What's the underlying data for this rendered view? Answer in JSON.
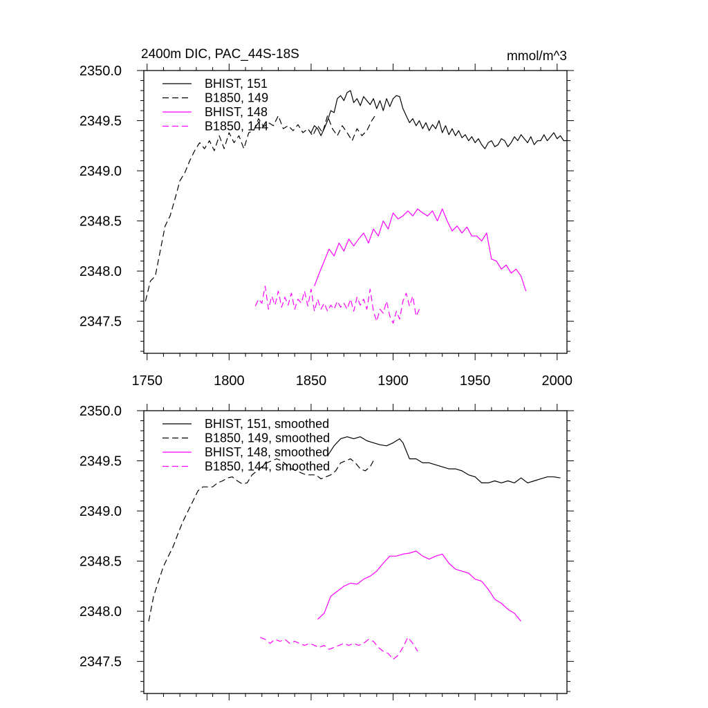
{
  "colors": {
    "black": "#000000",
    "magenta": "#ff00ff"
  },
  "chart_data": [
    {
      "type": "line",
      "title": "2400m DIC, PAC_44S-18S",
      "unit_label": "mmol/m^3",
      "xlim": [
        1748,
        2006
      ],
      "ylim": [
        2347.18,
        2350.0
      ],
      "xticks": [
        1750,
        1800,
        1850,
        1900,
        1950,
        2000
      ],
      "xtick_labels": [
        "1750",
        "1800",
        "1850",
        "1900",
        "1950",
        "2000"
      ],
      "yticks": [
        2350.0,
        2349.5,
        2349.0,
        2348.5,
        2348.0,
        2347.5
      ],
      "ytick_labels": [
        "2350.0",
        "2349.5",
        "2349.0",
        "2348.5",
        "2348.0",
        "2347.5"
      ],
      "legend_position": "top-left",
      "series": [
        {
          "name": "BHIST, 151",
          "color": "#000000",
          "dash": "solid",
          "x": [
            1850,
            1852,
            1854,
            1856,
            1858,
            1860,
            1862,
            1864,
            1866,
            1868,
            1870,
            1872,
            1874,
            1876,
            1878,
            1880,
            1882,
            1884,
            1886,
            1888,
            1890,
            1892,
            1894,
            1896,
            1898,
            1900,
            1902,
            1904,
            1906,
            1908,
            1910,
            1912,
            1914,
            1916,
            1918,
            1920,
            1922,
            1924,
            1926,
            1928,
            1930,
            1932,
            1934,
            1936,
            1938,
            1940,
            1942,
            1944,
            1946,
            1948,
            1950,
            1952,
            1954,
            1956,
            1958,
            1960,
            1962,
            1964,
            1966,
            1968,
            1970,
            1972,
            1974,
            1976,
            1978,
            1980,
            1982,
            1984,
            1986,
            1988,
            1990,
            1992,
            1994,
            1996,
            1998,
            2000,
            2002,
            2004,
            2006
          ],
          "y": [
            2349.38,
            2349.45,
            2349.42,
            2349.35,
            2349.42,
            2349.5,
            2349.6,
            2349.58,
            2349.72,
            2349.75,
            2349.7,
            2349.78,
            2349.8,
            2349.68,
            2349.72,
            2349.65,
            2349.74,
            2349.7,
            2349.66,
            2349.72,
            2349.62,
            2349.7,
            2349.6,
            2349.72,
            2349.64,
            2349.72,
            2349.75,
            2349.74,
            2349.62,
            2349.55,
            2349.48,
            2349.52,
            2349.45,
            2349.5,
            2349.42,
            2349.48,
            2349.4,
            2349.46,
            2349.42,
            2349.5,
            2349.38,
            2349.45,
            2349.36,
            2349.42,
            2349.35,
            2349.4,
            2349.33,
            2349.36,
            2349.3,
            2349.34,
            2349.28,
            2349.32,
            2349.26,
            2349.22,
            2349.28,
            2349.3,
            2349.24,
            2349.26,
            2349.32,
            2349.3,
            2349.24,
            2349.28,
            2349.34,
            2349.3,
            2349.36,
            2349.32,
            2349.28,
            2349.34,
            2349.26,
            2349.3,
            2349.3,
            2349.36,
            2349.3,
            2349.34,
            2349.38,
            2349.32,
            2349.35,
            2349.3,
            2349.3
          ]
        },
        {
          "name": "B1850, 149",
          "color": "#000000",
          "dash": "dashed",
          "x": [
            1749,
            1752,
            1755,
            1758,
            1761,
            1764,
            1767,
            1770,
            1773,
            1776,
            1779,
            1782,
            1785,
            1788,
            1791,
            1794,
            1797,
            1800,
            1803,
            1806,
            1809,
            1812,
            1815,
            1818,
            1821,
            1824,
            1827,
            1830,
            1833,
            1836,
            1839,
            1842,
            1845,
            1848,
            1851,
            1854,
            1857,
            1860,
            1863,
            1866,
            1869,
            1872,
            1875,
            1878,
            1881,
            1884,
            1887,
            1889
          ],
          "y": [
            2347.7,
            2347.9,
            2347.95,
            2348.2,
            2348.45,
            2348.55,
            2348.72,
            2348.9,
            2348.98,
            2349.1,
            2349.2,
            2349.28,
            2349.22,
            2349.3,
            2349.2,
            2349.35,
            2349.22,
            2349.38,
            2349.28,
            2349.35,
            2349.22,
            2349.38,
            2349.4,
            2349.52,
            2349.44,
            2349.48,
            2349.45,
            2349.55,
            2349.42,
            2349.45,
            2349.4,
            2349.46,
            2349.38,
            2349.42,
            2349.35,
            2349.45,
            2349.38,
            2349.55,
            2349.42,
            2349.35,
            2349.45,
            2349.38,
            2349.3,
            2349.42,
            2349.35,
            2349.4,
            2349.5,
            2349.55
          ]
        },
        {
          "name": "BHIST, 148",
          "color": "#ff00ff",
          "dash": "solid",
          "x": [
            1852,
            1855,
            1858,
            1861,
            1864,
            1867,
            1870,
            1873,
            1876,
            1879,
            1882,
            1885,
            1888,
            1891,
            1894,
            1897,
            1900,
            1903,
            1906,
            1909,
            1912,
            1915,
            1918,
            1921,
            1924,
            1927,
            1930,
            1933,
            1936,
            1939,
            1942,
            1945,
            1948,
            1951,
            1954,
            1957,
            1960,
            1963,
            1966,
            1969,
            1972,
            1975,
            1978,
            1981
          ],
          "y": [
            2347.85,
            2347.98,
            2348.1,
            2348.22,
            2348.15,
            2348.28,
            2348.2,
            2348.32,
            2348.25,
            2348.32,
            2348.38,
            2348.28,
            2348.42,
            2348.35,
            2348.5,
            2348.42,
            2348.58,
            2348.52,
            2348.55,
            2348.6,
            2348.55,
            2348.62,
            2348.58,
            2348.55,
            2348.6,
            2348.5,
            2348.62,
            2348.5,
            2348.4,
            2348.45,
            2348.38,
            2348.44,
            2348.35,
            2348.35,
            2348.3,
            2348.38,
            2348.12,
            2348.1,
            2348.02,
            2348.06,
            2347.98,
            2348.02,
            2347.95,
            2347.8
          ],
          "series_role": "data"
        },
        {
          "name": "B1850, 144",
          "color": "#ff00ff",
          "dash": "dashed",
          "x": [
            1816,
            1818,
            1820,
            1822,
            1824,
            1826,
            1828,
            1830,
            1832,
            1834,
            1836,
            1838,
            1840,
            1842,
            1844,
            1846,
            1848,
            1850,
            1852,
            1854,
            1856,
            1858,
            1860,
            1862,
            1864,
            1866,
            1868,
            1870,
            1872,
            1874,
            1876,
            1878,
            1880,
            1882,
            1884,
            1886,
            1888,
            1890,
            1892,
            1894,
            1896,
            1898,
            1900,
            1902,
            1904,
            1906,
            1908,
            1910,
            1912,
            1914,
            1916
          ],
          "y": [
            2347.65,
            2347.72,
            2347.68,
            2347.85,
            2347.62,
            2347.75,
            2347.66,
            2347.8,
            2347.64,
            2347.74,
            2347.66,
            2347.78,
            2347.62,
            2347.72,
            2347.68,
            2347.8,
            2347.65,
            2347.82,
            2347.6,
            2347.72,
            2347.62,
            2347.68,
            2347.6,
            2347.66,
            2347.62,
            2347.7,
            2347.64,
            2347.68,
            2347.62,
            2347.72,
            2347.6,
            2347.74,
            2347.66,
            2347.72,
            2347.62,
            2347.82,
            2347.6,
            2347.5,
            2347.62,
            2347.58,
            2347.7,
            2347.55,
            2347.48,
            2347.6,
            2347.52,
            2347.7,
            2347.78,
            2347.65,
            2347.75,
            2347.55,
            2347.62
          ]
        }
      ]
    },
    {
      "type": "line",
      "xlim": [
        1748,
        2006
      ],
      "ylim": [
        2347.18,
        2350.0
      ],
      "xticks": [
        1750,
        1800,
        1850,
        1900,
        1950,
        2000
      ],
      "yticks": [
        2350.0,
        2349.5,
        2349.0,
        2348.5,
        2348.0,
        2347.5
      ],
      "ytick_labels": [
        "2350.0",
        "2349.5",
        "2349.0",
        "2348.5",
        "2348.0",
        "2347.5"
      ],
      "legend_position": "top-left",
      "series": [
        {
          "name": "BHIST, 151, smoothed",
          "color": "#000000",
          "dash": "solid",
          "x": [
            1860,
            1864,
            1868,
            1872,
            1876,
            1880,
            1884,
            1888,
            1892,
            1896,
            1900,
            1904,
            1906,
            1910,
            1914,
            1918,
            1922,
            1926,
            1930,
            1934,
            1938,
            1942,
            1946,
            1950,
            1954,
            1958,
            1962,
            1966,
            1970,
            1974,
            1978,
            1982,
            1986,
            1990,
            1994,
            1998,
            2002
          ],
          "y": [
            2349.55,
            2349.65,
            2349.72,
            2349.74,
            2349.72,
            2349.74,
            2349.7,
            2349.68,
            2349.66,
            2349.65,
            2349.68,
            2349.72,
            2349.68,
            2349.52,
            2349.52,
            2349.48,
            2349.48,
            2349.46,
            2349.44,
            2349.42,
            2349.42,
            2349.4,
            2349.36,
            2349.34,
            2349.28,
            2349.28,
            2349.3,
            2349.28,
            2349.3,
            2349.28,
            2349.33,
            2349.28,
            2349.3,
            2349.32,
            2349.34,
            2349.34,
            2349.33
          ]
        },
        {
          "name": "B1850, 149, smoothed",
          "color": "#000000",
          "dash": "dashed",
          "x": [
            1751,
            1754,
            1757,
            1760,
            1763,
            1766,
            1769,
            1772,
            1775,
            1778,
            1781,
            1784,
            1787,
            1790,
            1793,
            1796,
            1799,
            1802,
            1805,
            1808,
            1811,
            1814,
            1817,
            1820,
            1823,
            1826,
            1829,
            1832,
            1835,
            1838,
            1841,
            1844,
            1847,
            1850,
            1853,
            1856,
            1859,
            1862,
            1865,
            1868,
            1871,
            1874,
            1877,
            1880,
            1883,
            1886,
            1888
          ],
          "y": [
            2347.9,
            2348.15,
            2348.3,
            2348.45,
            2348.55,
            2348.65,
            2348.78,
            2348.9,
            2349.0,
            2349.1,
            2349.2,
            2349.24,
            2349.24,
            2349.24,
            2349.28,
            2349.3,
            2349.33,
            2349.34,
            2349.3,
            2349.27,
            2349.28,
            2349.36,
            2349.4,
            2349.44,
            2349.48,
            2349.5,
            2349.52,
            2349.5,
            2349.46,
            2349.42,
            2349.4,
            2349.38,
            2349.36,
            2349.36,
            2349.36,
            2349.32,
            2349.34,
            2349.36,
            2349.4,
            2349.48,
            2349.5,
            2349.52,
            2349.48,
            2349.42,
            2349.4,
            2349.44,
            2349.5
          ]
        },
        {
          "name": "BHIST, 148, smoothed",
          "color": "#ff00ff",
          "dash": "solid",
          "x": [
            1854,
            1858,
            1862,
            1866,
            1870,
            1874,
            1878,
            1882,
            1886,
            1890,
            1894,
            1898,
            1902,
            1906,
            1910,
            1914,
            1918,
            1922,
            1926,
            1930,
            1934,
            1938,
            1942,
            1946,
            1950,
            1954,
            1958,
            1962,
            1966,
            1970,
            1974,
            1978
          ],
          "y": [
            2347.92,
            2347.98,
            2348.15,
            2348.2,
            2348.25,
            2348.28,
            2348.27,
            2348.32,
            2348.35,
            2348.4,
            2348.48,
            2348.55,
            2348.55,
            2348.57,
            2348.58,
            2348.6,
            2348.55,
            2348.52,
            2348.55,
            2348.57,
            2348.48,
            2348.42,
            2348.4,
            2348.38,
            2348.32,
            2348.3,
            2348.22,
            2348.12,
            2348.08,
            2348.02,
            2347.98,
            2347.9
          ]
        },
        {
          "name": "B1850, 144, smoothed",
          "color": "#ff00ff",
          "dash": "dashed",
          "x": [
            1819,
            1822,
            1825,
            1828,
            1831,
            1834,
            1837,
            1840,
            1843,
            1846,
            1849,
            1852,
            1855,
            1858,
            1861,
            1864,
            1867,
            1870,
            1873,
            1876,
            1879,
            1882,
            1885,
            1888,
            1891,
            1894,
            1897,
            1900,
            1903,
            1906,
            1909,
            1912,
            1915
          ],
          "y": [
            2347.74,
            2347.72,
            2347.68,
            2347.72,
            2347.7,
            2347.72,
            2347.68,
            2347.7,
            2347.68,
            2347.66,
            2347.68,
            2347.66,
            2347.64,
            2347.66,
            2347.62,
            2347.64,
            2347.66,
            2347.68,
            2347.66,
            2347.68,
            2347.66,
            2347.68,
            2347.72,
            2347.7,
            2347.64,
            2347.6,
            2347.58,
            2347.52,
            2347.56,
            2347.64,
            2347.74,
            2347.68,
            2347.6
          ]
        }
      ]
    }
  ]
}
